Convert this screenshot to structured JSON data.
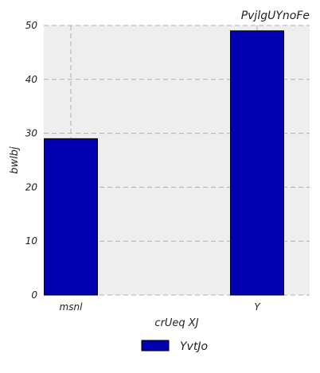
{
  "chart_data": {
    "type": "bar",
    "title": "PvjlgUYnoFe",
    "xlabel": "crUeq XJ",
    "ylabel": "bwlbj",
    "categories": [
      "msnl",
      "Y"
    ],
    "series": [
      {
        "name": "YvtJo",
        "values": [
          29,
          49
        ],
        "color": "#0000b0"
      }
    ],
    "ylim": [
      0,
      50
    ],
    "yticks": [
      0,
      10,
      20,
      30,
      40,
      50
    ],
    "grid": true,
    "legend_position": "bottom-center",
    "colors": {
      "plot_background": "#eeeeee",
      "grid": "#b0b0b0",
      "bar_edge": "#000000"
    }
  }
}
